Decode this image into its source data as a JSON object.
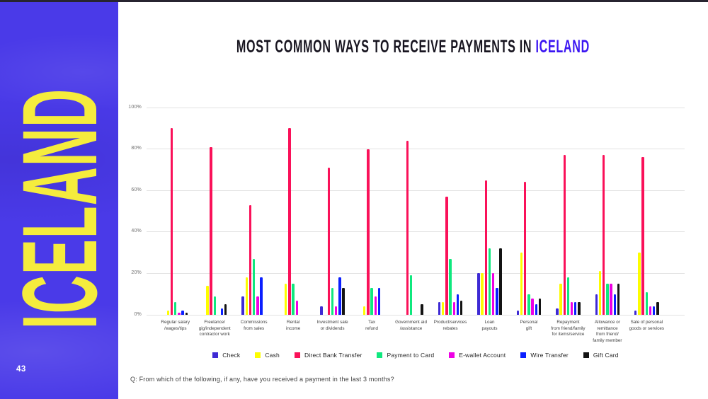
{
  "sidebar": {
    "vertical_label": "ICELAND",
    "page_number": "43",
    "background_color": "#4a3ae8",
    "label_color": "#f5ec3d"
  },
  "header": {
    "title_prefix": "MOST COMMON WAYS TO RECEIVE PAYMENTS IN ",
    "title_accent": "ICELAND",
    "accent_color": "#3b16f2"
  },
  "question": "Q: From which of the following, if any, have you received a payment in the last 3 months?",
  "chart_data": {
    "type": "bar",
    "title": "Most common ways to receive payments in Iceland",
    "xlabel": "",
    "ylabel": "",
    "ylim": [
      0,
      100
    ],
    "yticks": [
      "0%",
      "20%",
      "40%",
      "60%",
      "80%",
      "100%"
    ],
    "grid": true,
    "legend_position": "bottom",
    "gridline_color": "#e2e2e2",
    "categories": [
      "Regular salary\n/wages/tips",
      "Freelance/\ngig/independent\ncontractor work",
      "Commissions\nfrom sales",
      "Rental\nincome",
      "Investment sale\nor dividends",
      "Tax\nrefund",
      "Government aid\n/assistance",
      "Product/services\nrebates",
      "Loan\npayouts",
      "Personal\ngift",
      "Repayment\nfrom friend/family\nfor items/service",
      "Allowance or\nremittance\nfrom friend/\nfamily member",
      "Sale of personal\ngoods or services"
    ],
    "series": [
      {
        "name": "Check",
        "color": "#3e2ad4",
        "values": [
          0,
          0,
          9,
          0,
          4,
          0,
          0,
          6,
          20,
          2,
          3,
          10,
          2
        ]
      },
      {
        "name": "Cash",
        "color": "#fdfd00",
        "values": [
          2,
          14,
          18,
          15,
          0,
          4,
          0,
          6,
          20,
          30,
          15,
          21,
          30
        ]
      },
      {
        "name": "Direct Bank Transfer",
        "color": "#fa1159",
        "values": [
          90,
          81,
          53,
          90,
          71,
          80,
          84,
          57,
          65,
          64,
          77,
          77,
          76
        ]
      },
      {
        "name": "Payment to Card",
        "color": "#0fe87e",
        "values": [
          6,
          9,
          27,
          15,
          13,
          13,
          19,
          27,
          32,
          10,
          18,
          15,
          11
        ]
      },
      {
        "name": "E-wallet Account",
        "color": "#ee00e4",
        "values": [
          1,
          0,
          9,
          7,
          4,
          9,
          0,
          6,
          20,
          8,
          6,
          15,
          4
        ]
      },
      {
        "name": "Wire Transfer",
        "color": "#0a1fff",
        "values": [
          2,
          3,
          18,
          0,
          18,
          13,
          0,
          10,
          13,
          5,
          6,
          10,
          4
        ]
      },
      {
        "name": "Gift Card",
        "color": "#131313",
        "values": [
          1,
          5,
          0,
          0,
          13,
          0,
          5,
          7,
          32,
          8,
          6,
          15,
          6
        ]
      }
    ]
  }
}
